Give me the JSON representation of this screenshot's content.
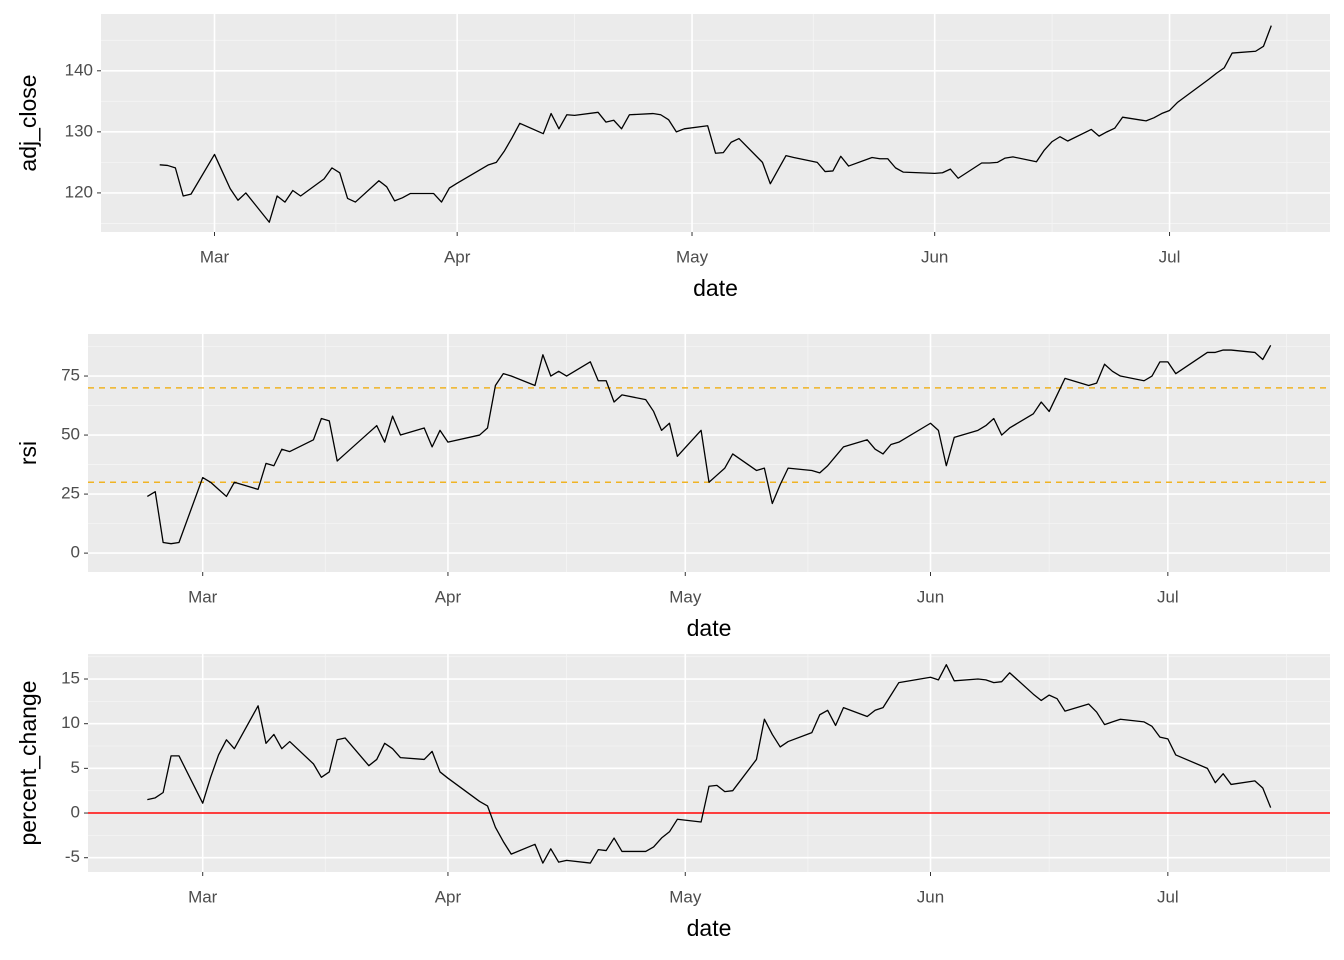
{
  "chart_data": [
    {
      "type": "line",
      "x_label": "date",
      "y_label": "adj_close",
      "color": "#000000",
      "grid": true,
      "xlim": [
        45.5,
        202.5
      ],
      "xticks": [
        {
          "value": 60,
          "label": "Mar"
        },
        {
          "value": 91,
          "label": "Apr"
        },
        {
          "value": 121,
          "label": "May"
        },
        {
          "value": 152,
          "label": "Jun"
        },
        {
          "value": 182,
          "label": "Jul"
        }
      ],
      "ylim": [
        113.6,
        149.3
      ],
      "yticks": [
        120,
        130,
        140
      ],
      "x": [
        53,
        54,
        55,
        56,
        57,
        60,
        61,
        62,
        63,
        64,
        67,
        68,
        69,
        70,
        71,
        74,
        75,
        76,
        77,
        78,
        81,
        82,
        83,
        84,
        85,
        88,
        89,
        90,
        91,
        95,
        96,
        97,
        98,
        99,
        102,
        103,
        104,
        105,
        106,
        109,
        110,
        111,
        112,
        113,
        116,
        117,
        118,
        119,
        120,
        123,
        124,
        125,
        126,
        127,
        130,
        131,
        132,
        133,
        134,
        137,
        138,
        139,
        140,
        141,
        144,
        145,
        146,
        147,
        148,
        152,
        153,
        154,
        155,
        158,
        159,
        160,
        161,
        162,
        165,
        166,
        167,
        168,
        169,
        172,
        173,
        174,
        175,
        176,
        179,
        180,
        181,
        182,
        183,
        187,
        188,
        189,
        190,
        193,
        194,
        195
      ],
      "values": [
        124.6,
        124.5,
        124.1,
        119.5,
        119.8,
        126.3,
        123.5,
        120.7,
        118.8,
        120.0,
        115.2,
        119.5,
        118.5,
        120.4,
        119.5,
        122.3,
        124.1,
        123.3,
        119.1,
        118.5,
        122.0,
        121.0,
        118.7,
        119.2,
        119.9,
        119.9,
        118.5,
        120.8,
        121.6,
        124.6,
        125.0,
        126.8,
        129.0,
        131.4,
        129.7,
        133.0,
        130.5,
        132.8,
        132.7,
        133.2,
        131.6,
        131.9,
        130.5,
        132.8,
        133.0,
        132.8,
        132.0,
        130.0,
        130.5,
        131.0,
        126.5,
        126.6,
        128.3,
        128.9,
        125.0,
        121.5,
        123.8,
        126.1,
        125.8,
        125.0,
        123.5,
        123.6,
        126.0,
        124.4,
        125.8,
        125.6,
        125.6,
        124.1,
        123.4,
        123.2,
        123.3,
        123.9,
        122.4,
        124.9,
        124.9,
        125.0,
        125.7,
        125.9,
        125.1,
        127.0,
        128.4,
        129.2,
        128.5,
        130.4,
        129.3,
        130.0,
        130.6,
        132.4,
        131.8,
        132.3,
        133.0,
        133.5,
        134.8,
        138.6,
        139.6,
        140.5,
        142.9,
        143.2,
        144.0,
        147.4
      ]
    },
    {
      "type": "line",
      "x_label": "date",
      "y_label": "rsi",
      "color": "#000000",
      "grid": true,
      "reference_lines": [
        70,
        30
      ],
      "reference_color": "#f0b323",
      "reference_dashed": true,
      "xlim": [
        45.5,
        202.5
      ],
      "xticks": [
        {
          "value": 60,
          "label": "Mar"
        },
        {
          "value": 91,
          "label": "Apr"
        },
        {
          "value": 121,
          "label": "May"
        },
        {
          "value": 152,
          "label": "Jun"
        },
        {
          "value": 182,
          "label": "Jul"
        }
      ],
      "ylim": [
        -8,
        92.8
      ],
      "yticks": [
        0,
        25,
        50,
        75
      ],
      "x": [
        53,
        54,
        55,
        56,
        57,
        60,
        61,
        62,
        63,
        64,
        67,
        68,
        69,
        70,
        71,
        74,
        75,
        76,
        77,
        78,
        81,
        82,
        83,
        84,
        85,
        88,
        89,
        90,
        91,
        95,
        96,
        97,
        98,
        99,
        102,
        103,
        104,
        105,
        106,
        109,
        110,
        111,
        112,
        113,
        116,
        117,
        118,
        119,
        120,
        123,
        124,
        125,
        126,
        127,
        130,
        131,
        132,
        133,
        134,
        137,
        138,
        139,
        140,
        141,
        144,
        145,
        146,
        147,
        148,
        152,
        153,
        154,
        155,
        158,
        159,
        160,
        161,
        162,
        165,
        166,
        167,
        168,
        169,
        172,
        173,
        174,
        175,
        176,
        179,
        180,
        181,
        182,
        183,
        187,
        188,
        189,
        190,
        193,
        194,
        195
      ],
      "values": [
        24,
        26,
        4.5,
        4,
        4.5,
        32,
        30,
        27,
        24,
        30,
        27,
        38,
        37,
        44,
        43,
        48,
        57,
        56,
        39,
        42,
        51,
        54,
        47,
        58,
        50,
        53,
        45,
        52,
        47,
        50,
        53,
        71,
        76,
        75,
        71,
        84,
        75,
        77,
        75,
        81,
        73,
        73,
        64,
        67,
        65,
        60,
        52,
        55,
        41,
        52,
        30,
        33,
        36,
        42,
        35,
        36,
        21,
        29,
        36,
        35,
        34,
        37,
        41,
        45,
        48,
        44,
        42,
        46,
        47,
        55,
        52,
        37,
        49,
        52,
        54,
        57,
        50,
        53,
        59,
        64,
        60,
        67,
        74,
        71,
        72,
        80,
        77,
        75,
        73,
        75,
        81,
        81,
        76,
        85,
        85,
        86,
        86,
        85,
        82,
        88
      ]
    },
    {
      "type": "line",
      "x_label": "date",
      "y_label": "percent_change",
      "color": "#000000",
      "grid": true,
      "reference_lines": [
        0
      ],
      "reference_color": "#ff0000",
      "reference_dashed": false,
      "xlim": [
        45.5,
        202.5
      ],
      "xticks": [
        {
          "value": 60,
          "label": "Mar"
        },
        {
          "value": 91,
          "label": "Apr"
        },
        {
          "value": 121,
          "label": "May"
        },
        {
          "value": 152,
          "label": "Jun"
        },
        {
          "value": 182,
          "label": "Jul"
        }
      ],
      "ylim": [
        -6.6,
        17.8
      ],
      "yticks": [
        -5,
        0,
        5,
        10,
        15
      ],
      "x": [
        53,
        54,
        55,
        56,
        57,
        60,
        61,
        62,
        63,
        64,
        67,
        68,
        69,
        70,
        71,
        74,
        75,
        76,
        77,
        78,
        81,
        82,
        83,
        84,
        85,
        88,
        89,
        90,
        91,
        95,
        96,
        97,
        98,
        99,
        102,
        103,
        104,
        105,
        106,
        109,
        110,
        111,
        112,
        113,
        116,
        117,
        118,
        119,
        120,
        123,
        124,
        125,
        126,
        127,
        130,
        131,
        132,
        133,
        134,
        137,
        138,
        139,
        140,
        141,
        144,
        145,
        146,
        147,
        148,
        152,
        153,
        154,
        155,
        158,
        159,
        160,
        161,
        162,
        165,
        166,
        167,
        168,
        169,
        172,
        173,
        174,
        175,
        176,
        179,
        180,
        181,
        182,
        183,
        187,
        188,
        189,
        190,
        193,
        194,
        195
      ],
      "values": [
        1.5,
        1.7,
        2.3,
        6.4,
        6.4,
        1.1,
        4.0,
        6.5,
        8.2,
        7.2,
        12.0,
        7.8,
        8.8,
        7.2,
        8.0,
        5.5,
        4.0,
        4.6,
        8.2,
        8.4,
        5.3,
        6.0,
        7.8,
        7.2,
        6.2,
        6.0,
        6.9,
        4.6,
        3.9,
        1.3,
        0.8,
        -1.6,
        -3.2,
        -4.6,
        -3.5,
        -5.6,
        -4.0,
        -5.5,
        -5.3,
        -5.6,
        -4.1,
        -4.2,
        -2.8,
        -4.3,
        -4.3,
        -3.8,
        -2.8,
        -2.1,
        -0.7,
        -1.0,
        3.0,
        3.1,
        2.4,
        2.5,
        6.0,
        10.5,
        8.8,
        7.4,
        8.0,
        9.0,
        11.0,
        11.5,
        9.8,
        11.8,
        10.8,
        11.5,
        11.8,
        13.2,
        14.6,
        15.2,
        14.9,
        16.6,
        14.8,
        15.0,
        14.9,
        14.6,
        14.7,
        15.7,
        13.3,
        12.6,
        13.2,
        12.8,
        11.4,
        12.2,
        11.3,
        9.9,
        10.2,
        10.5,
        10.2,
        9.7,
        8.5,
        8.3,
        6.5,
        5.0,
        3.4,
        4.4,
        3.2,
        3.6,
        2.8,
        0.6
      ]
    }
  ]
}
